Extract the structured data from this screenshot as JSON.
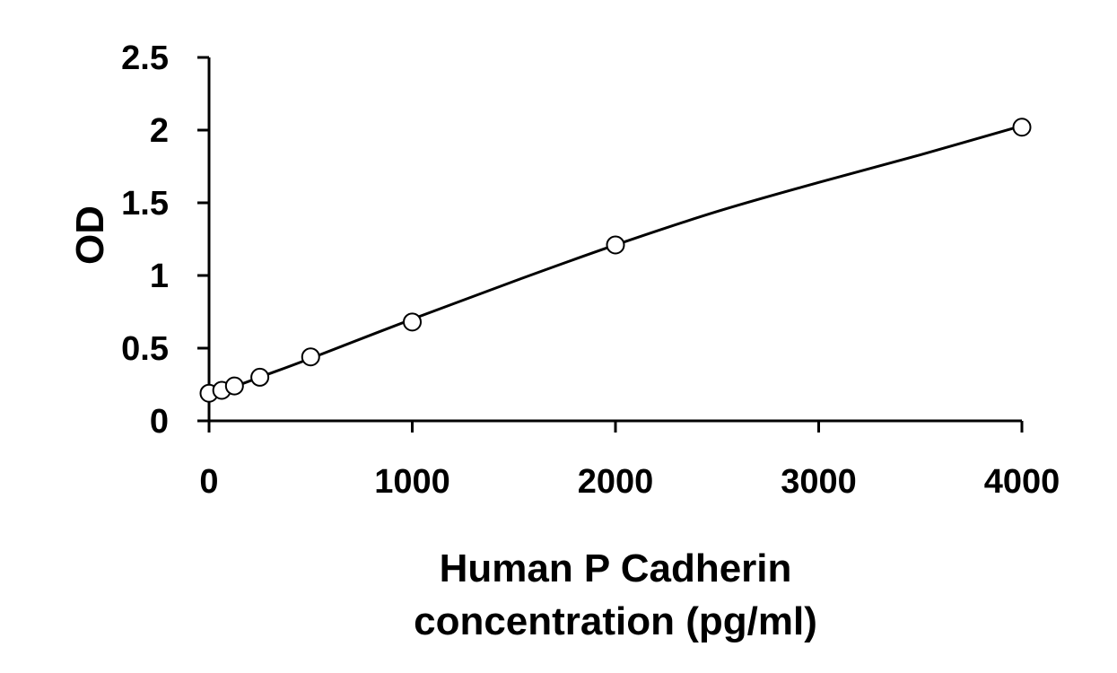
{
  "chart_data": {
    "type": "scatter",
    "title": "",
    "xlabel_lines": [
      "Human P Cadherin",
      "concentration (pg/ml)"
    ],
    "ylabel": "OD",
    "xlim": [
      0,
      4000
    ],
    "ylim": [
      0,
      2.5
    ],
    "x_ticks": [
      0,
      1000,
      2000,
      3000,
      4000
    ],
    "x_tick_labels": [
      "0",
      "1000",
      "2000",
      "3000",
      "4000"
    ],
    "y_ticks": [
      0,
      0.5,
      1,
      1.5,
      2,
      2.5
    ],
    "y_tick_labels": [
      "0",
      "0.5",
      "1",
      "1.5",
      "2",
      "2.5"
    ],
    "grid": false,
    "legend": "none",
    "series": [
      {
        "marker": "open-circle",
        "x": [
          0,
          62.5,
          125,
          250,
          500,
          1000,
          2000,
          4000
        ],
        "y": [
          0.19,
          0.21,
          0.24,
          0.3,
          0.44,
          0.68,
          1.21,
          2.02
        ]
      }
    ],
    "fit_curve": {
      "type": "smooth",
      "x": [
        0,
        250,
        500,
        1000,
        1500,
        2000,
        2500,
        3000,
        3500,
        4000
      ],
      "y": [
        0.17,
        0.3,
        0.43,
        0.7,
        0.96,
        1.21,
        1.44,
        1.64,
        1.83,
        2.03
      ]
    },
    "colors": {
      "line": "#000000",
      "marker_fill": "#ffffff",
      "marker_stroke": "#000000"
    }
  }
}
